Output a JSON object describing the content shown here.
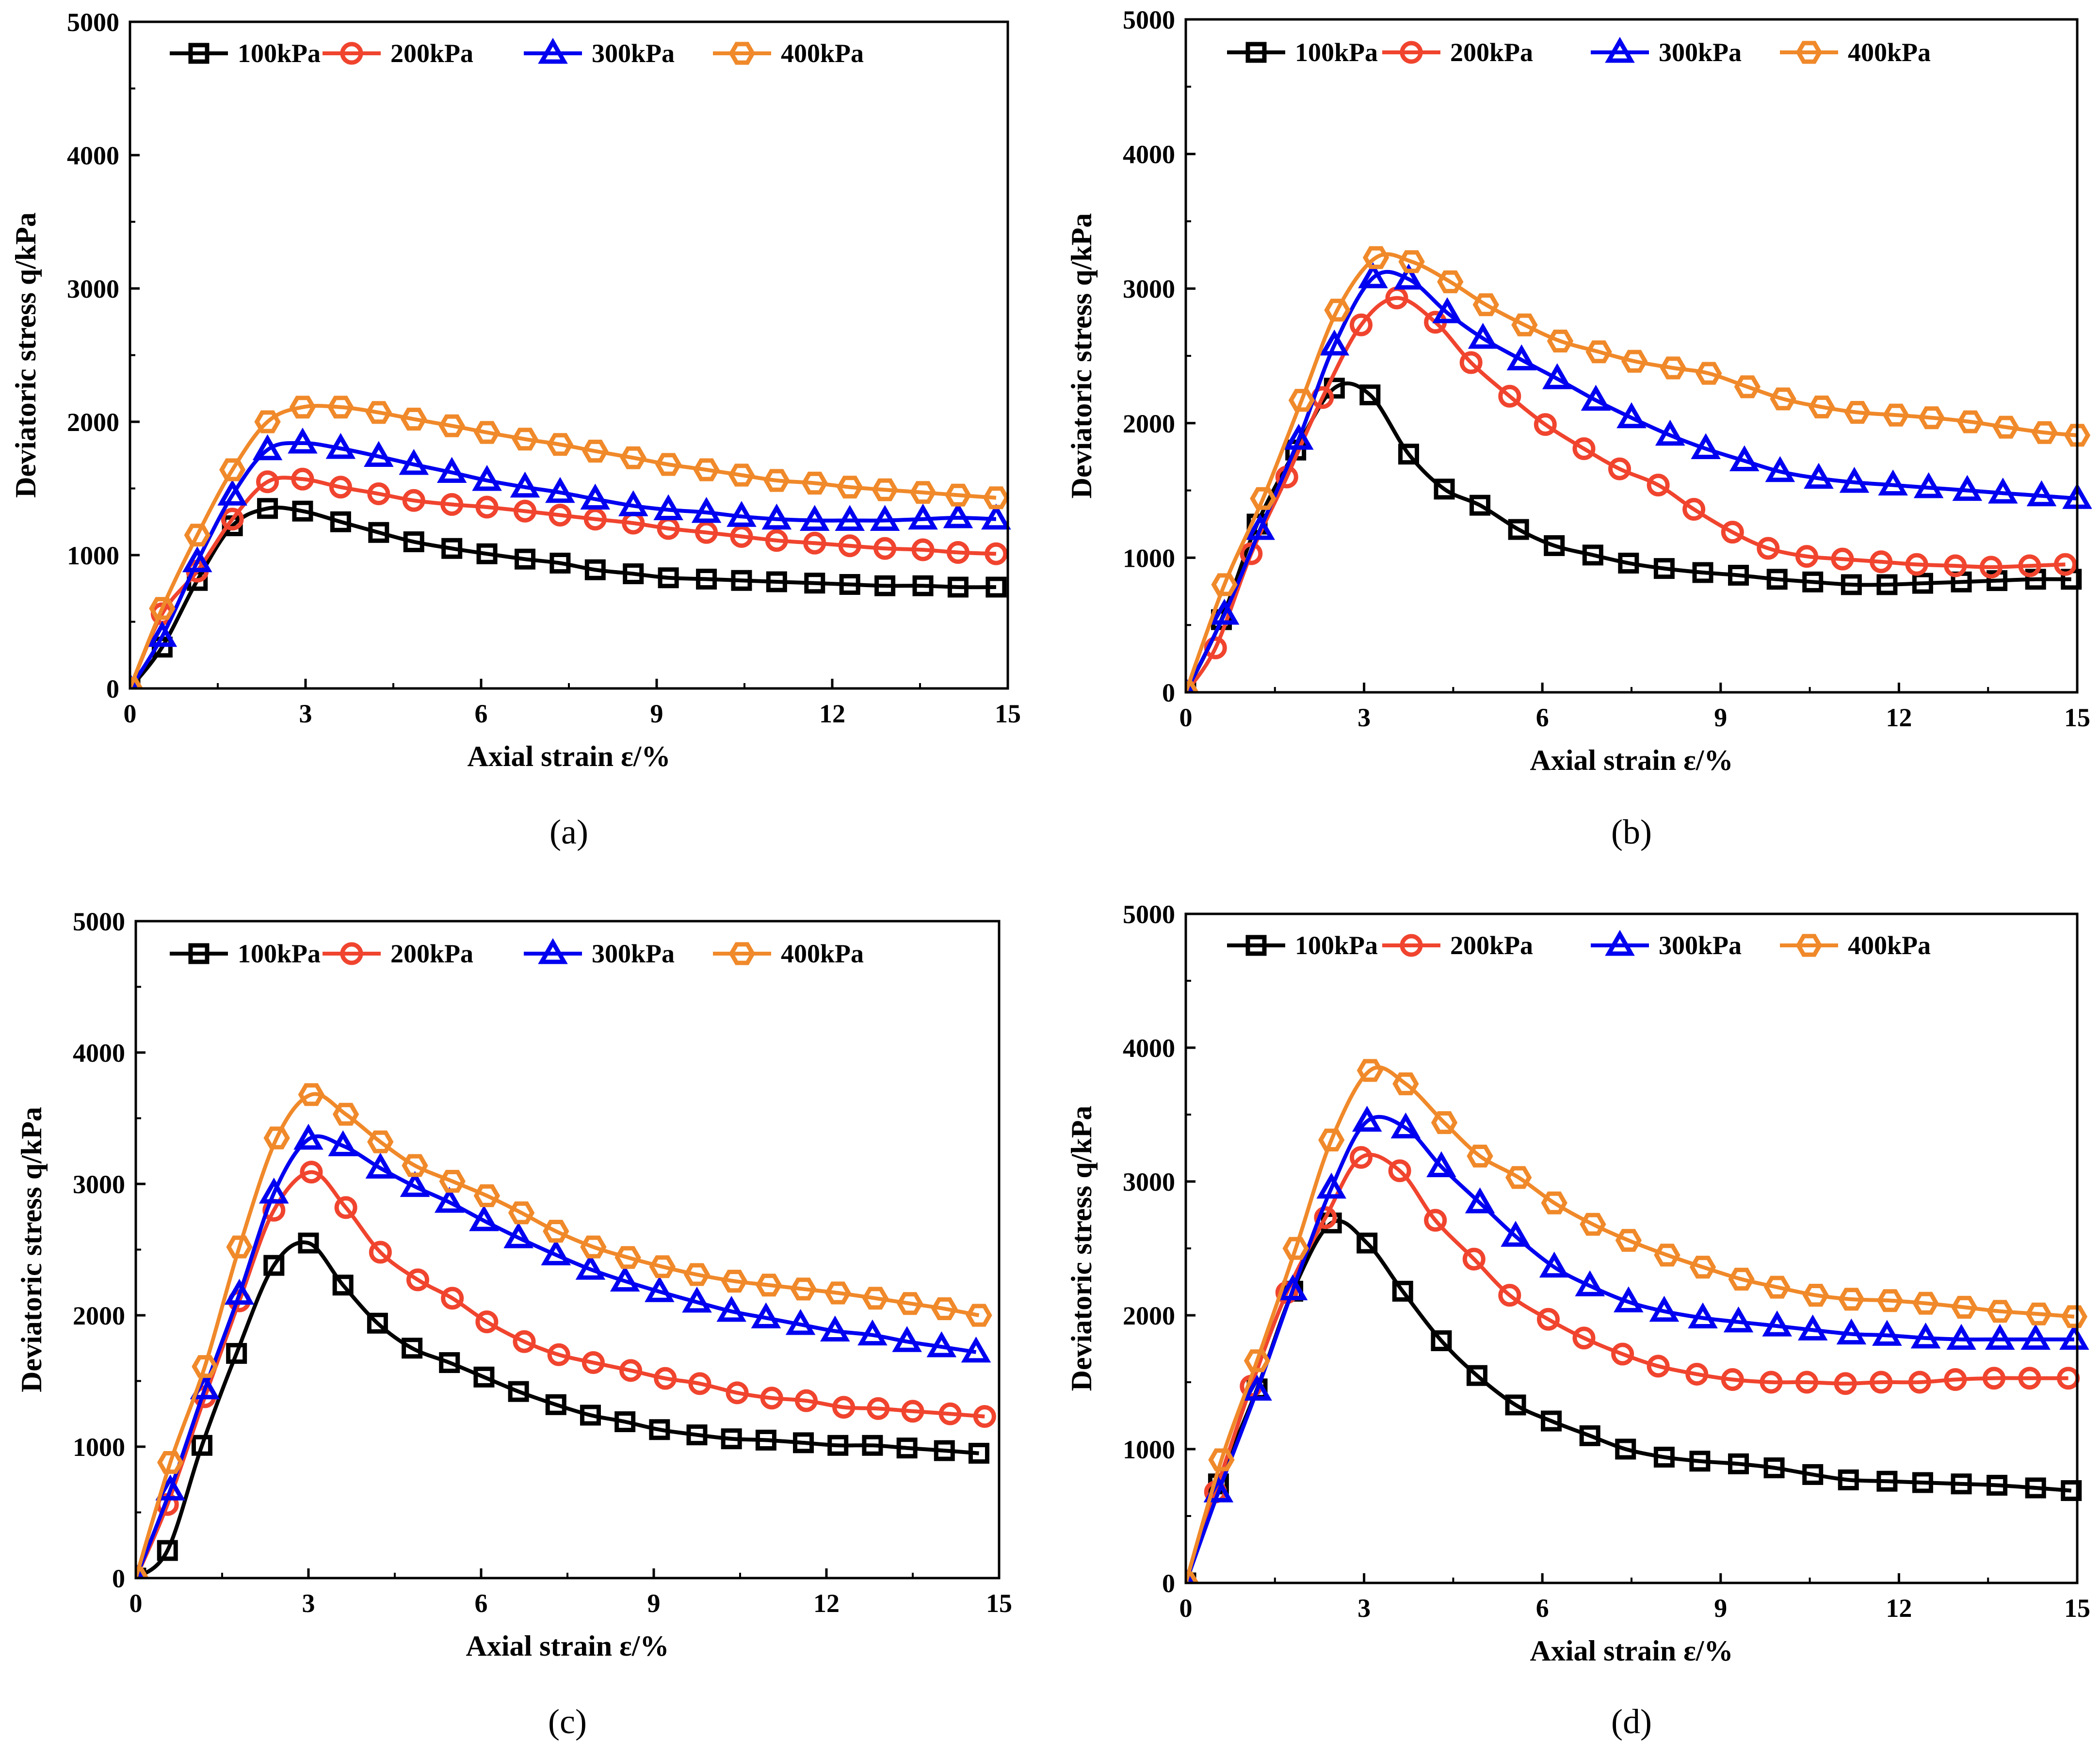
{
  "legend": [
    "100kPa",
    "200kPa",
    "300kPa",
    "400kPa"
  ],
  "series_styles": [
    {
      "name": "100kPa",
      "color": "#000000",
      "marker": "square"
    },
    {
      "name": "200kPa",
      "color": "#f0442e",
      "marker": "circle"
    },
    {
      "name": "300kPa",
      "color": "#0000f0",
      "marker": "triangle"
    },
    {
      "name": "400kPa",
      "color": "#f0892a",
      "marker": "hexagon"
    }
  ],
  "chart_data": [
    {
      "panel": "(a)",
      "type": "line",
      "xlabel": "Axial strain ε/%",
      "ylabel": "Deviatoric stress q/kPa",
      "xlim": [
        0,
        15
      ],
      "ylim": [
        0,
        5000
      ],
      "xticks": [
        0,
        3,
        6,
        9,
        12,
        15
      ],
      "yticks": [
        0,
        1000,
        2000,
        3000,
        4000,
        5000
      ],
      "series": [
        {
          "name": "100kPa",
          "x": [
            0,
            0.55,
            1.15,
            1.75,
            2.35,
            2.95,
            3.6,
            4.25,
            4.85,
            5.5,
            6.1,
            6.75,
            7.35,
            7.95,
            8.6,
            9.2,
            9.85,
            10.45,
            11.05,
            11.7,
            12.3,
            12.9,
            13.55,
            14.15,
            14.8
          ],
          "y": [
            0,
            310,
            810,
            1220,
            1350,
            1330,
            1250,
            1170,
            1100,
            1050,
            1010,
            970,
            940,
            890,
            860,
            830,
            820,
            810,
            800,
            790,
            780,
            770,
            770,
            760,
            760
          ]
        },
        {
          "name": "200kPa",
          "x": [
            0,
            0.55,
            1.15,
            1.75,
            2.35,
            2.95,
            3.6,
            4.25,
            4.85,
            5.5,
            6.1,
            6.75,
            7.35,
            7.95,
            8.6,
            9.2,
            9.85,
            10.45,
            11.05,
            11.7,
            12.3,
            12.9,
            13.55,
            14.15,
            14.8
          ],
          "y": [
            0,
            560,
            880,
            1270,
            1550,
            1570,
            1510,
            1460,
            1410,
            1380,
            1360,
            1330,
            1300,
            1270,
            1240,
            1200,
            1170,
            1140,
            1110,
            1090,
            1070,
            1050,
            1040,
            1020,
            1010
          ]
        },
        {
          "name": "300kPa",
          "x": [
            0,
            0.55,
            1.15,
            1.75,
            2.35,
            2.95,
            3.6,
            4.25,
            4.85,
            5.5,
            6.1,
            6.75,
            7.35,
            7.95,
            8.6,
            9.2,
            9.85,
            10.45,
            11.05,
            11.7,
            12.3,
            12.9,
            13.55,
            14.15,
            14.8
          ],
          "y": [
            0,
            390,
            950,
            1450,
            1790,
            1840,
            1800,
            1740,
            1680,
            1620,
            1560,
            1510,
            1470,
            1420,
            1370,
            1340,
            1320,
            1290,
            1270,
            1260,
            1260,
            1260,
            1270,
            1280,
            1270
          ]
        },
        {
          "name": "400kPa",
          "x": [
            0,
            0.55,
            1.15,
            1.75,
            2.35,
            2.95,
            3.6,
            4.25,
            4.85,
            5.5,
            6.1,
            6.75,
            7.35,
            7.95,
            8.6,
            9.2,
            9.85,
            10.45,
            11.05,
            11.7,
            12.3,
            12.9,
            13.55,
            14.15,
            14.8
          ],
          "y": [
            0,
            600,
            1150,
            1640,
            2000,
            2110,
            2110,
            2070,
            2020,
            1970,
            1920,
            1870,
            1830,
            1780,
            1730,
            1680,
            1640,
            1600,
            1560,
            1540,
            1510,
            1490,
            1470,
            1450,
            1430
          ]
        }
      ]
    },
    {
      "panel": "(b)",
      "type": "line",
      "xlabel": "Axial strain ε/%",
      "ylabel": "Deviatoric stress q/kPa",
      "xlim": [
        0,
        15
      ],
      "ylim": [
        0,
        5000
      ],
      "xticks": [
        0,
        3,
        6,
        9,
        12,
        15
      ],
      "yticks": [
        0,
        1000,
        2000,
        3000,
        4000,
        5000
      ],
      "series": [
        {
          "name": "100kPa",
          "x": [
            0,
            0.6,
            1.2,
            1.85,
            2.5,
            3.1,
            3.75,
            4.35,
            4.95,
            5.6,
            6.2,
            6.85,
            7.45,
            8.05,
            8.7,
            9.3,
            9.95,
            10.55,
            11.2,
            11.8,
            12.4,
            13.05,
            13.65,
            14.3,
            14.9
          ],
          "y": [
            0,
            540,
            1250,
            1800,
            2260,
            2210,
            1770,
            1510,
            1390,
            1210,
            1090,
            1020,
            960,
            920,
            890,
            870,
            840,
            820,
            800,
            800,
            810,
            820,
            830,
            840,
            840
          ]
        },
        {
          "name": "200kPa",
          "x": [
            0,
            0.5,
            1.1,
            1.7,
            2.3,
            2.95,
            3.55,
            4.2,
            4.8,
            5.45,
            6.05,
            6.7,
            7.3,
            7.95,
            8.55,
            9.2,
            9.8,
            10.45,
            11.05,
            11.7,
            12.3,
            12.95,
            13.55,
            14.2,
            14.8
          ],
          "y": [
            0,
            330,
            1030,
            1600,
            2190,
            2730,
            2930,
            2750,
            2450,
            2200,
            1990,
            1810,
            1660,
            1540,
            1360,
            1190,
            1070,
            1010,
            990,
            970,
            950,
            940,
            930,
            940,
            950
          ]
        },
        {
          "name": "300kPa",
          "x": [
            0,
            0.65,
            1.25,
            1.9,
            2.5,
            3.15,
            3.75,
            4.4,
            5,
            5.65,
            6.25,
            6.9,
            7.5,
            8.15,
            8.75,
            9.4,
            10,
            10.65,
            11.25,
            11.9,
            12.5,
            13.15,
            13.75,
            14.4,
            15
          ],
          "y": [
            0,
            580,
            1210,
            1880,
            2580,
            3080,
            3070,
            2820,
            2630,
            2470,
            2330,
            2170,
            2040,
            1910,
            1810,
            1720,
            1640,
            1590,
            1560,
            1540,
            1520,
            1500,
            1480,
            1460,
            1440
          ]
        },
        {
          "name": "400kPa",
          "x": [
            0,
            0.65,
            1.3,
            1.95,
            2.55,
            3.2,
            3.8,
            4.45,
            5.05,
            5.7,
            6.3,
            6.95,
            7.55,
            8.2,
            8.8,
            9.45,
            10.05,
            10.7,
            11.3,
            11.95,
            12.55,
            13.2,
            13.8,
            14.45,
            15
          ],
          "y": [
            0,
            800,
            1440,
            2170,
            2840,
            3230,
            3200,
            3050,
            2880,
            2730,
            2610,
            2530,
            2460,
            2410,
            2370,
            2270,
            2180,
            2120,
            2080,
            2060,
            2040,
            2010,
            1970,
            1930,
            1910
          ]
        }
      ]
    },
    {
      "panel": "(c)",
      "type": "line",
      "xlabel": "Axial strain ε/%",
      "ylabel": "Deviatoric stress q/kPa",
      "xlim": [
        0,
        15
      ],
      "ylim": [
        0,
        5000
      ],
      "xticks": [
        0,
        3,
        6,
        9,
        12,
        15
      ],
      "yticks": [
        0,
        1000,
        2000,
        3000,
        4000,
        5000
      ],
      "series": [
        {
          "name": "100kPa",
          "x": [
            0,
            0.55,
            1.15,
            1.75,
            2.4,
            3,
            3.6,
            4.2,
            4.8,
            5.45,
            6.05,
            6.65,
            7.3,
            7.9,
            8.5,
            9.1,
            9.75,
            10.35,
            10.95,
            11.6,
            12.2,
            12.8,
            13.4,
            14.05,
            14.65
          ],
          "y": [
            0,
            210,
            1010,
            1710,
            2380,
            2550,
            2230,
            1940,
            1750,
            1640,
            1530,
            1420,
            1320,
            1240,
            1190,
            1130,
            1090,
            1060,
            1050,
            1030,
            1010,
            1010,
            990,
            970,
            950
          ]
        },
        {
          "name": "200kPa",
          "x": [
            0,
            0.55,
            1.2,
            1.8,
            2.4,
            3.05,
            3.65,
            4.25,
            4.9,
            5.5,
            6.1,
            6.75,
            7.35,
            7.95,
            8.6,
            9.2,
            9.8,
            10.45,
            11.05,
            11.65,
            12.3,
            12.9,
            13.5,
            14.15,
            14.75
          ],
          "y": [
            0,
            560,
            1380,
            2110,
            2800,
            3090,
            2820,
            2480,
            2270,
            2130,
            1950,
            1800,
            1700,
            1640,
            1580,
            1520,
            1480,
            1410,
            1370,
            1350,
            1300,
            1290,
            1270,
            1250,
            1230
          ]
        },
        {
          "name": "300kPa",
          "x": [
            0,
            0.6,
            1.2,
            1.8,
            2.4,
            3,
            3.6,
            4.25,
            4.85,
            5.45,
            6.05,
            6.65,
            7.3,
            7.9,
            8.5,
            9.1,
            9.75,
            10.35,
            10.95,
            11.55,
            12.15,
            12.8,
            13.4,
            14,
            14.6
          ],
          "y": [
            0,
            670,
            1440,
            2160,
            2930,
            3340,
            3290,
            3120,
            2980,
            2860,
            2720,
            2590,
            2460,
            2350,
            2260,
            2180,
            2100,
            2030,
            1980,
            1930,
            1880,
            1850,
            1800,
            1760,
            1720
          ]
        },
        {
          "name": "400kPa",
          "x": [
            0,
            0.6,
            1.2,
            1.8,
            2.45,
            3.05,
            3.65,
            4.25,
            4.85,
            5.5,
            6.1,
            6.7,
            7.3,
            7.95,
            8.55,
            9.15,
            9.75,
            10.4,
            11,
            11.6,
            12.2,
            12.85,
            13.45,
            14.05,
            14.65
          ],
          "y": [
            0,
            880,
            1610,
            2520,
            3350,
            3680,
            3530,
            3320,
            3140,
            3020,
            2910,
            2780,
            2640,
            2520,
            2440,
            2370,
            2310,
            2260,
            2230,
            2200,
            2170,
            2130,
            2090,
            2050,
            2000
          ]
        }
      ]
    },
    {
      "panel": "(d)",
      "type": "line",
      "xlabel": "Axial strain ε/%",
      "ylabel": "Deviatoric stress q/kPa",
      "xlim": [
        0,
        15
      ],
      "ylim": [
        0,
        5000
      ],
      "xticks": [
        0,
        3,
        6,
        9,
        12,
        15
      ],
      "yticks": [
        0,
        1000,
        2000,
        3000,
        4000,
        5000
      ],
      "series": [
        {
          "name": "100kPa",
          "x": [
            0,
            0.55,
            1.2,
            1.8,
            2.45,
            3.05,
            3.65,
            4.3,
            4.9,
            5.55,
            6.15,
            6.8,
            7.4,
            8.05,
            8.65,
            9.3,
            9.9,
            10.55,
            11.15,
            11.8,
            12.4,
            13.05,
            13.65,
            14.3,
            14.9
          ],
          "y": [
            0,
            740,
            1450,
            2180,
            2690,
            2540,
            2180,
            1810,
            1550,
            1330,
            1210,
            1100,
            1000,
            940,
            910,
            890,
            860,
            810,
            770,
            760,
            750,
            740,
            730,
            710,
            690
          ]
        },
        {
          "name": "200kPa",
          "x": [
            0,
            0.5,
            1.1,
            1.7,
            2.35,
            2.95,
            3.6,
            4.2,
            4.85,
            5.45,
            6.1,
            6.7,
            7.35,
            7.95,
            8.6,
            9.2,
            9.85,
            10.45,
            11.1,
            11.7,
            12.35,
            12.95,
            13.6,
            14.2,
            14.85
          ],
          "y": [
            0,
            680,
            1470,
            2170,
            2730,
            3180,
            3080,
            2710,
            2420,
            2150,
            1970,
            1830,
            1710,
            1620,
            1560,
            1520,
            1500,
            1500,
            1490,
            1500,
            1500,
            1520,
            1530,
            1530,
            1530
          ]
        },
        {
          "name": "300kPa",
          "x": [
            0,
            0.55,
            1.2,
            1.8,
            2.45,
            3.05,
            3.7,
            4.3,
            4.95,
            5.55,
            6.2,
            6.8,
            7.45,
            8.05,
            8.7,
            9.3,
            9.95,
            10.55,
            11.2,
            11.8,
            12.45,
            13.05,
            13.7,
            14.3,
            14.95
          ],
          "y": [
            0,
            680,
            1440,
            2190,
            2950,
            3450,
            3400,
            3110,
            2840,
            2590,
            2360,
            2220,
            2100,
            2030,
            1980,
            1950,
            1920,
            1890,
            1860,
            1850,
            1830,
            1820,
            1820,
            1820,
            1820
          ]
        },
        {
          "name": "400kPa",
          "x": [
            0,
            0.6,
            1.2,
            1.85,
            2.45,
            3.1,
            3.7,
            4.35,
            4.95,
            5.6,
            6.2,
            6.85,
            7.45,
            8.1,
            8.7,
            9.35,
            9.95,
            10.6,
            11.2,
            11.85,
            12.45,
            13.1,
            13.7,
            14.35,
            14.95
          ],
          "y": [
            0,
            920,
            1660,
            2500,
            3310,
            3830,
            3730,
            3440,
            3190,
            3030,
            2840,
            2680,
            2560,
            2450,
            2360,
            2270,
            2210,
            2150,
            2120,
            2110,
            2090,
            2060,
            2030,
            2010,
            1990
          ]
        }
      ]
    }
  ]
}
